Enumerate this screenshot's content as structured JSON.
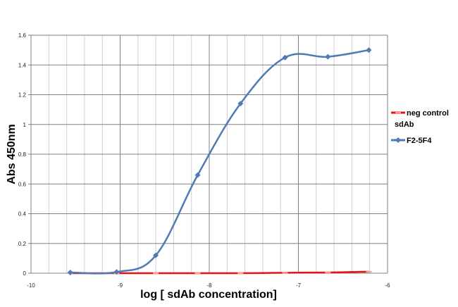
{
  "chart_data": {
    "type": "scatter",
    "xlabel": "log [ sdAb concentration]",
    "ylabel": "Abs 450nm",
    "xlim": [
      -10,
      -6
    ],
    "ylim": [
      0,
      1.6
    ],
    "x_ticks": [
      "-10",
      "-9",
      "-8",
      "-7",
      "-6"
    ],
    "y_ticks": [
      "0",
      "0.2",
      "0.4",
      "0.6",
      "0.8",
      "1",
      "1.2",
      "1.4",
      "1.6"
    ],
    "x_minor_step": 0.2,
    "grid": "on",
    "legend_position": "right",
    "series": [
      {
        "name": "neg control sdAb",
        "color": "#e8130f",
        "marker": "dash",
        "x": [
          -9.56,
          -9.04,
          -8.6,
          -8.13,
          -7.65,
          -7.15,
          -6.67,
          -6.21
        ],
        "y": [
          0.0,
          0.0,
          0.0,
          0.0,
          0.0,
          0.003,
          0.005,
          0.01
        ]
      },
      {
        "name": "F2-5F4",
        "color": "#4f7ab4",
        "marker": "diamond",
        "x": [
          -9.56,
          -9.04,
          -8.6,
          -8.13,
          -7.65,
          -7.15,
          -6.67,
          -6.21
        ],
        "y": [
          0.005,
          0.008,
          0.12,
          0.66,
          1.14,
          1.45,
          1.455,
          1.5
        ]
      }
    ]
  }
}
